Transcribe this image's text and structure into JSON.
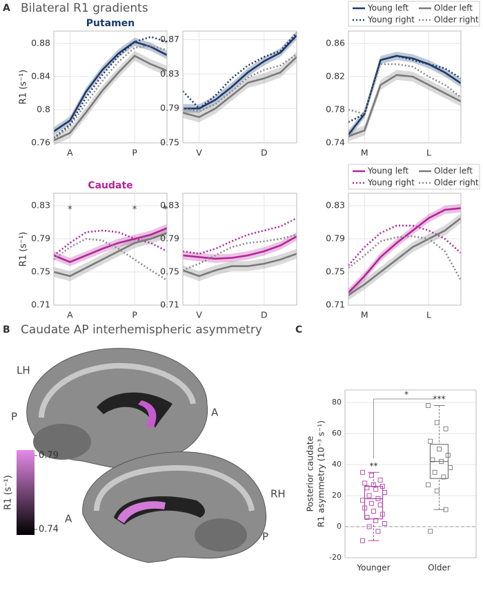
{
  "figure": {
    "panel_labels": [
      "A",
      "B",
      "C"
    ],
    "headings": [
      "Bilateral R1 gradients",
      "Caudate AP interhemispheric asymmetry"
    ]
  },
  "brain": {
    "labels": [
      "LH",
      "P",
      "A",
      "RH",
      "A",
      "P"
    ],
    "colorbar": {
      "label": "R1 (s⁻¹)",
      "ticks": [
        0.74,
        0.79
      ],
      "colors": [
        "#000000",
        "#e58ae8"
      ]
    }
  },
  "chart_data": [
    {
      "type": "line",
      "title": "Putamen",
      "title_color": "#1b3a6b",
      "ylabel": "R1 (s⁻¹)",
      "x": [
        1,
        2,
        3,
        4,
        5,
        6,
        7,
        8
      ],
      "xlim": [
        1,
        8
      ],
      "xticks": [
        {
          "value": 2,
          "label": "A"
        },
        {
          "value": 6,
          "label": "P"
        }
      ],
      "ylim": [
        0.76,
        0.895
      ],
      "yticks": [
        0.76,
        0.8,
        0.84,
        0.88
      ],
      "grid": true,
      "legend": false,
      "series": [
        {
          "color": "#1b3a6b",
          "style": "solid",
          "values": [
            0.774,
            0.787,
            0.822,
            0.848,
            0.868,
            0.882,
            0.876,
            0.866
          ],
          "error": [
            0.005,
            0.005,
            0.005,
            0.005,
            0.005,
            0.005,
            0.005,
            0.005
          ]
        },
        {
          "color": "#1b3a6b",
          "style": "dotted",
          "values": [
            0.766,
            0.782,
            0.815,
            0.842,
            0.865,
            0.882,
            0.888,
            0.882
          ]
        },
        {
          "color": "#7a7a7a",
          "style": "solid",
          "values": [
            0.763,
            0.772,
            0.797,
            0.823,
            0.845,
            0.865,
            0.855,
            0.847
          ],
          "error": [
            0.006,
            0.006,
            0.006,
            0.006,
            0.006,
            0.006,
            0.006,
            0.006
          ]
        },
        {
          "color": "#8a8a8a",
          "style": "dotted",
          "values": [
            0.765,
            0.78,
            0.808,
            0.835,
            0.858,
            0.875,
            0.877,
            0.872
          ]
        }
      ]
    },
    {
      "type": "line",
      "x": [
        1,
        2,
        3,
        4,
        5,
        6,
        7,
        8
      ],
      "xlim": [
        1,
        8
      ],
      "xticks": [
        {
          "value": 2,
          "label": "V"
        },
        {
          "value": 6,
          "label": "D"
        }
      ],
      "ylim": [
        0.75,
        0.88
      ],
      "yticks": [
        0.75,
        0.79,
        0.83,
        0.87
      ],
      "grid": true,
      "legend": false,
      "series": [
        {
          "color": "#1b3a6b",
          "style": "solid",
          "values": [
            0.79,
            0.79,
            0.8,
            0.815,
            0.832,
            0.845,
            0.855,
            0.875
          ],
          "error": [
            0.005,
            0.005,
            0.005,
            0.005,
            0.005,
            0.005,
            0.005,
            0.005
          ]
        },
        {
          "color": "#1b3a6b",
          "style": "dotted",
          "values": [
            0.81,
            0.79,
            0.805,
            0.825,
            0.84,
            0.85,
            0.857,
            0.878
          ]
        },
        {
          "color": "#7a7a7a",
          "style": "solid",
          "values": [
            0.785,
            0.78,
            0.79,
            0.805,
            0.82,
            0.825,
            0.832,
            0.85
          ],
          "error": [
            0.006,
            0.006,
            0.006,
            0.006,
            0.006,
            0.006,
            0.006,
            0.006
          ]
        },
        {
          "color": "#8a8a8a",
          "style": "dotted",
          "values": [
            0.79,
            0.787,
            0.795,
            0.81,
            0.826,
            0.835,
            0.84,
            0.853
          ]
        }
      ]
    },
    {
      "type": "line",
      "x": [
        1,
        2,
        3,
        4,
        5,
        6,
        7,
        8
      ],
      "xlim": [
        1,
        8
      ],
      "xticks": [
        {
          "value": 2,
          "label": "M"
        },
        {
          "value": 6,
          "label": "L"
        }
      ],
      "ylim": [
        0.74,
        0.875
      ],
      "yticks": [
        0.74,
        0.78,
        0.82,
        0.86
      ],
      "grid": true,
      "legend": true,
      "series": [
        {
          "name": "Young left",
          "color": "#1b3a6b",
          "style": "solid",
          "values": [
            0.75,
            0.775,
            0.84,
            0.845,
            0.842,
            0.835,
            0.825,
            0.812
          ],
          "error": [
            0.005,
            0.005,
            0.005,
            0.005,
            0.005,
            0.005,
            0.005,
            0.005
          ]
        },
        {
          "name": "Young right",
          "color": "#1b3a6b",
          "style": "dotted",
          "values": [
            0.765,
            0.775,
            0.84,
            0.845,
            0.84,
            0.835,
            0.83,
            0.818
          ]
        },
        {
          "name": "Older left",
          "color": "#7a7a7a",
          "style": "solid",
          "values": [
            0.748,
            0.755,
            0.81,
            0.822,
            0.82,
            0.81,
            0.8,
            0.79
          ],
          "error": [
            0.006,
            0.006,
            0.006,
            0.006,
            0.006,
            0.006,
            0.006,
            0.006
          ]
        },
        {
          "name": "Older right",
          "color": "#8a8a8a",
          "style": "dotted",
          "values": [
            0.78,
            0.775,
            0.835,
            0.835,
            0.832,
            0.82,
            0.81,
            0.795
          ]
        }
      ]
    },
    {
      "type": "line",
      "title": "Caudate",
      "title_color": "#b5249a",
      "ylabel": "R1 (s⁻¹)",
      "x": [
        1,
        2,
        3,
        4,
        5,
        6,
        7,
        8
      ],
      "xlim": [
        1,
        8
      ],
      "xticks": [
        {
          "value": 2,
          "label": "A"
        },
        {
          "value": 6,
          "label": "P"
        }
      ],
      "ylim": [
        0.71,
        0.845
      ],
      "yticks": [
        0.71,
        0.75,
        0.79,
        0.83
      ],
      "grid": true,
      "legend": false,
      "annotations": [
        {
          "text": "*",
          "x": 2
        },
        {
          "text": "*",
          "x": 6
        },
        {
          "text": "*",
          "x": 7.9
        }
      ],
      "series": [
        {
          "color": "#b5249a",
          "style": "solid",
          "values": [
            0.77,
            0.762,
            0.77,
            0.778,
            0.785,
            0.79,
            0.795,
            0.803
          ],
          "error": [
            0.005,
            0.005,
            0.005,
            0.005,
            0.005,
            0.005,
            0.005,
            0.005
          ]
        },
        {
          "color": "#b5249a",
          "style": "dotted",
          "values": [
            0.77,
            0.785,
            0.798,
            0.8,
            0.798,
            0.79,
            0.785,
            0.775
          ]
        },
        {
          "color": "#7a7a7a",
          "style": "solid",
          "values": [
            0.75,
            0.745,
            0.755,
            0.765,
            0.775,
            0.785,
            0.79,
            0.797
          ],
          "error": [
            0.006,
            0.006,
            0.006,
            0.006,
            0.006,
            0.006,
            0.006,
            0.006
          ]
        },
        {
          "color": "#8a8a8a",
          "style": "dotted",
          "values": [
            0.765,
            0.78,
            0.79,
            0.788,
            0.778,
            0.765,
            0.752,
            0.74
          ]
        }
      ]
    },
    {
      "type": "line",
      "x": [
        1,
        2,
        3,
        4,
        5,
        6,
        7,
        8
      ],
      "xlim": [
        1,
        8
      ],
      "xticks": [
        {
          "value": 2,
          "label": "V"
        },
        {
          "value": 6,
          "label": "D"
        }
      ],
      "ylim": [
        0.71,
        0.845
      ],
      "yticks": [
        0.71,
        0.75,
        0.79,
        0.83
      ],
      "grid": true,
      "legend": false,
      "series": [
        {
          "color": "#b5249a",
          "style": "solid",
          "values": [
            0.77,
            0.768,
            0.766,
            0.767,
            0.77,
            0.775,
            0.782,
            0.793
          ],
          "error": [
            0.005,
            0.005,
            0.005,
            0.005,
            0.005,
            0.005,
            0.005,
            0.005
          ]
        },
        {
          "color": "#b5249a",
          "style": "dotted",
          "values": [
            0.775,
            0.772,
            0.778,
            0.787,
            0.795,
            0.8,
            0.805,
            0.815
          ]
        },
        {
          "color": "#7a7a7a",
          "style": "solid",
          "values": [
            0.752,
            0.745,
            0.752,
            0.757,
            0.757,
            0.76,
            0.765,
            0.772
          ],
          "error": [
            0.006,
            0.006,
            0.006,
            0.006,
            0.006,
            0.006,
            0.006,
            0.006
          ]
        },
        {
          "color": "#8a8a8a",
          "style": "dotted",
          "values": [
            0.752,
            0.76,
            0.77,
            0.78,
            0.785,
            0.787,
            0.79,
            0.795
          ]
        }
      ]
    },
    {
      "type": "line",
      "x": [
        1,
        2,
        3,
        4,
        5,
        6,
        7,
        8
      ],
      "xlim": [
        1,
        8
      ],
      "xticks": [
        {
          "value": 2,
          "label": "M"
        },
        {
          "value": 6,
          "label": "L"
        }
      ],
      "ylim": [
        0.71,
        0.845
      ],
      "yticks": [
        0.71,
        0.75,
        0.79,
        0.83
      ],
      "grid": true,
      "legend": true,
      "series": [
        {
          "name": "Young left",
          "color": "#b5249a",
          "style": "solid",
          "values": [
            0.725,
            0.745,
            0.768,
            0.785,
            0.8,
            0.815,
            0.825,
            0.827
          ],
          "error": [
            0.005,
            0.005,
            0.005,
            0.005,
            0.005,
            0.005,
            0.005,
            0.005
          ]
        },
        {
          "name": "Young right",
          "color": "#b5249a",
          "style": "dotted",
          "values": [
            0.758,
            0.78,
            0.797,
            0.806,
            0.806,
            0.8,
            0.79,
            0.773
          ]
        },
        {
          "name": "Older left",
          "color": "#7a7a7a",
          "style": "solid",
          "values": [
            0.722,
            0.735,
            0.75,
            0.765,
            0.78,
            0.79,
            0.8,
            0.815
          ],
          "error": [
            0.006,
            0.006,
            0.006,
            0.006,
            0.006,
            0.006,
            0.006,
            0.006
          ]
        },
        {
          "name": "Older right",
          "color": "#8a8a8a",
          "style": "dotted",
          "values": [
            0.755,
            0.77,
            0.787,
            0.792,
            0.793,
            0.79,
            0.775,
            0.74
          ]
        }
      ]
    },
    {
      "type": "box",
      "ylabel": [
        "Posterior caudate",
        "R1 asymmetry (10⁻³ s⁻¹)"
      ],
      "categories": [
        "Younger",
        "Older"
      ],
      "colors": [
        "#b040a8",
        "#777777"
      ],
      "ylim": [
        -20,
        88
      ],
      "yticks": [
        -20,
        0,
        20,
        40,
        60,
        80
      ],
      "grid": true,
      "zero_line": true,
      "boxes": [
        {
          "min": -9,
          "q1": 5,
          "median": 18,
          "q3": 26,
          "max": 35
        },
        {
          "min": 11,
          "q1": 31,
          "median": 42,
          "q3": 53,
          "max": 78
        }
      ],
      "points": [
        [
          35,
          33,
          30,
          28,
          27,
          26,
          25,
          24,
          22,
          20,
          18,
          17,
          15,
          14,
          12,
          10,
          8,
          6,
          4,
          2,
          0,
          -3,
          -9
        ],
        [
          78,
          67,
          63,
          55,
          50,
          46,
          43,
          42,
          38,
          35,
          32,
          27,
          23,
          11,
          -3
        ]
      ],
      "significance": [
        "**",
        "***"
      ],
      "comparison": "*"
    }
  ]
}
